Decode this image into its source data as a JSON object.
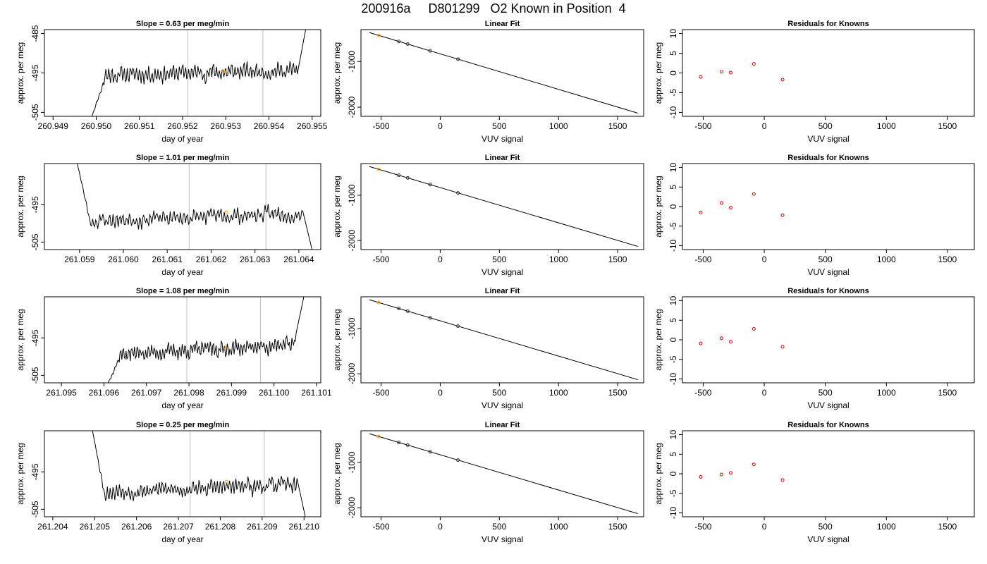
{
  "figure_title": "200916a     D801299   O2 Known in Position  4",
  "colors": {
    "trace": "#000000",
    "ref_line": "#bebebe",
    "highlight": "#ffa500",
    "residual_point": "#cd0000",
    "fit_point": "#333333",
    "axis": "#000000"
  },
  "chart_data": [
    {
      "type": "line",
      "row": 0,
      "column": "trace",
      "title": "Slope =  0.63  per meg/min",
      "xlabel": "day of year",
      "ylabel": "approx. per meg",
      "xlim": [
        260.9488,
        260.9552
      ],
      "ylim": [
        -506,
        -484
      ],
      "xticks": [
        "260.949",
        "260.950",
        "260.951",
        "260.952",
        "260.953",
        "260.954",
        "260.955"
      ],
      "xtick_values": [
        260.949,
        260.95,
        260.951,
        260.952,
        260.953,
        260.954,
        260.955
      ],
      "yticks": [
        "-505",
        "-495",
        "-485"
      ],
      "ytick_values": [
        -505,
        -495,
        -485
      ],
      "ref_lines_x": [
        260.95212,
        260.95386
      ],
      "highlight_point": [
        260.95295,
        -494.6
      ],
      "trace": {
        "start": 260.9499,
        "end": 260.95485,
        "head": [
          -506,
          -496.5
        ],
        "level": -495.6,
        "rise": 1.3,
        "tail": [
          -495.5,
          -484
        ],
        "seed": 11
      }
    },
    {
      "type": "line",
      "row": 0,
      "column": "fit",
      "title": "Linear Fit",
      "xlabel": "VUV signal",
      "ylabel": "approx. per meg",
      "xlim": [
        -670,
        1720
      ],
      "ylim": [
        -2200,
        -300
      ],
      "xticks": [
        "-500",
        "0",
        "500",
        "1000",
        "1500"
      ],
      "xtick_values": [
        -500,
        0,
        500,
        1000,
        1500
      ],
      "yticks": [
        "-1000",
        "-2000"
      ],
      "ytick_values": [
        -1000,
        -2000
      ],
      "line": [
        [
          -600,
          -364
        ],
        [
          1670,
          -2130
        ]
      ],
      "points": [
        [
          -520,
          -427
        ],
        [
          -350,
          -559
        ],
        [
          -275,
          -617
        ],
        [
          -85,
          -765
        ],
        [
          150,
          -948
        ]
      ],
      "highlight_index": 0
    },
    {
      "type": "scatter",
      "row": 0,
      "column": "residuals",
      "title": "Residuals for Knowns",
      "xlabel": "VUV signal",
      "ylabel": "approx. per meg",
      "xlim": [
        -670,
        1720
      ],
      "ylim": [
        -11,
        11
      ],
      "xticks": [
        "-500",
        "0",
        "500",
        "1000",
        "1500"
      ],
      "xtick_values": [
        -500,
        0,
        500,
        1000,
        1500
      ],
      "yticks": [
        "-10",
        "-5",
        "0",
        "5",
        "10"
      ],
      "ytick_values": [
        -10,
        -5,
        0,
        5,
        10
      ],
      "points": [
        [
          -520,
          -1.0
        ],
        [
          -350,
          0.3
        ],
        [
          -275,
          0.1
        ],
        [
          -85,
          2.3
        ],
        [
          150,
          -1.7
        ]
      ]
    },
    {
      "type": "line",
      "row": 1,
      "column": "trace",
      "title": "Slope =  1.01  per meg/min",
      "xlabel": "day of year",
      "ylabel": "approx. per meg",
      "xlim": [
        261.0582,
        261.0645
      ],
      "ylim": [
        -507,
        -484
      ],
      "xticks": [
        "261.059",
        "261.060",
        "261.061",
        "261.062",
        "261.063",
        "261.064"
      ],
      "xtick_values": [
        261.059,
        261.06,
        261.061,
        261.062,
        261.063,
        261.064
      ],
      "yticks": [
        "-505",
        "-495"
      ],
      "ytick_values": [
        -505,
        -495
      ],
      "ref_lines_x": [
        261.0615,
        261.06325
      ],
      "highlight_point": [
        261.06235,
        -497.0
      ],
      "trace": {
        "start": 261.05895,
        "end": 261.0643,
        "head": [
          -484,
          -501
        ],
        "level": -499.5,
        "rise": 2.3,
        "tail": [
          -496.5,
          -507
        ],
        "seed": 23
      }
    },
    {
      "type": "line",
      "row": 1,
      "column": "fit",
      "title": "Linear Fit",
      "xlabel": "VUV signal",
      "ylabel": "approx. per meg",
      "xlim": [
        -670,
        1720
      ],
      "ylim": [
        -2200,
        -300
      ],
      "xticks": [
        "-500",
        "0",
        "500",
        "1000",
        "1500"
      ],
      "xtick_values": [
        -500,
        0,
        500,
        1000,
        1500
      ],
      "yticks": [
        "-1000",
        "-2000"
      ],
      "ytick_values": [
        -1000,
        -2000
      ],
      "line": [
        [
          -600,
          -364
        ],
        [
          1670,
          -2130
        ]
      ],
      "points": [
        [
          -520,
          -427
        ],
        [
          -350,
          -559
        ],
        [
          -275,
          -617
        ],
        [
          -85,
          -765
        ],
        [
          150,
          -948
        ]
      ],
      "highlight_index": 0
    },
    {
      "type": "scatter",
      "row": 1,
      "column": "residuals",
      "title": "Residuals for Knowns",
      "xlabel": "VUV signal",
      "ylabel": "approx. per meg",
      "xlim": [
        -670,
        1720
      ],
      "ylim": [
        -11,
        11
      ],
      "xticks": [
        "-500",
        "0",
        "500",
        "1000",
        "1500"
      ],
      "xtick_values": [
        -500,
        0,
        500,
        1000,
        1500
      ],
      "yticks": [
        "-10",
        "-5",
        "0",
        "5",
        "10"
      ],
      "ytick_values": [
        -10,
        -5,
        0,
        5,
        10
      ],
      "points": [
        [
          -520,
          -1.5
        ],
        [
          -350,
          0.9
        ],
        [
          -275,
          -0.3
        ],
        [
          -85,
          3.2
        ],
        [
          150,
          -2.2
        ]
      ]
    },
    {
      "type": "line",
      "row": 2,
      "column": "trace",
      "title": "Slope =  1.08  per meg/min",
      "xlabel": "day of year",
      "ylabel": "approx. per meg",
      "xlim": [
        261.0946,
        261.1011
      ],
      "ylim": [
        -507,
        -484
      ],
      "xticks": [
        "261.095",
        "261.096",
        "261.097",
        "261.098",
        "261.099",
        "261.100",
        "261.101"
      ],
      "xtick_values": [
        261.095,
        261.096,
        261.097,
        261.098,
        261.099,
        261.1,
        261.101
      ],
      "yticks": [
        "-505",
        "-495"
      ],
      "ytick_values": [
        -505,
        -495
      ],
      "ref_lines_x": [
        261.09795,
        261.09968
      ],
      "highlight_point": [
        261.09885,
        -497.5
      ],
      "trace": {
        "start": 261.0961,
        "end": 261.1007,
        "head": [
          -507,
          -500
        ],
        "level": -499.5,
        "rise": 2.8,
        "tail": [
          -494,
          -484
        ],
        "seed": 37
      }
    },
    {
      "type": "line",
      "row": 2,
      "column": "fit",
      "title": "Linear Fit",
      "xlabel": "VUV signal",
      "ylabel": "approx. per meg",
      "xlim": [
        -670,
        1720
      ],
      "ylim": [
        -2200,
        -300
      ],
      "xticks": [
        "-500",
        "0",
        "500",
        "1000",
        "1500"
      ],
      "xtick_values": [
        -500,
        0,
        500,
        1000,
        1500
      ],
      "yticks": [
        "-1000",
        "-2000"
      ],
      "ytick_values": [
        -1000,
        -2000
      ],
      "line": [
        [
          -600,
          -364
        ],
        [
          1670,
          -2130
        ]
      ],
      "points": [
        [
          -520,
          -427
        ],
        [
          -350,
          -559
        ],
        [
          -275,
          -617
        ],
        [
          -85,
          -765
        ],
        [
          150,
          -948
        ]
      ],
      "highlight_index": 0
    },
    {
      "type": "scatter",
      "row": 2,
      "column": "residuals",
      "title": "Residuals for Knowns",
      "xlabel": "VUV signal",
      "ylabel": "approx. per meg",
      "xlim": [
        -670,
        1720
      ],
      "ylim": [
        -11,
        11
      ],
      "xticks": [
        "-500",
        "0",
        "500",
        "1000",
        "1500"
      ],
      "xtick_values": [
        -500,
        0,
        500,
        1000,
        1500
      ],
      "yticks": [
        "-10",
        "-5",
        "0",
        "5",
        "10"
      ],
      "ytick_values": [
        -10,
        -5,
        0,
        5,
        10
      ],
      "points": [
        [
          -520,
          -0.9
        ],
        [
          -350,
          0.4
        ],
        [
          -275,
          -0.5
        ],
        [
          -85,
          2.8
        ],
        [
          150,
          -1.8
        ]
      ]
    },
    {
      "type": "line",
      "row": 3,
      "column": "trace",
      "title": "Slope =  0.25  per meg/min",
      "xlabel": "day of year",
      "ylabel": "approx. per meg",
      "xlim": [
        261.2038,
        261.2104
      ],
      "ylim": [
        -507,
        -484
      ],
      "xticks": [
        "261.204",
        "261.205",
        "261.206",
        "261.207",
        "261.208",
        "261.209",
        "261.210"
      ],
      "xtick_values": [
        261.204,
        261.205,
        261.206,
        261.207,
        261.208,
        261.209,
        261.21
      ],
      "yticks": [
        "-505",
        "-495"
      ],
      "ytick_values": [
        -505,
        -495
      ],
      "ref_lines_x": [
        261.20728,
        261.20905
      ],
      "highlight_point": [
        261.20815,
        -497.6
      ],
      "trace": {
        "start": 261.20495,
        "end": 261.21003,
        "head": [
          -484,
          -502
        ],
        "level": -500.5,
        "rise": 2.2,
        "tail": [
          -496.5,
          -507
        ],
        "seed": 53
      }
    },
    {
      "type": "line",
      "row": 3,
      "column": "fit",
      "title": "Linear Fit",
      "xlabel": "VUV signal",
      "ylabel": "approx. per meg",
      "xlim": [
        -670,
        1720
      ],
      "ylim": [
        -2200,
        -300
      ],
      "xticks": [
        "-500",
        "0",
        "500",
        "1000",
        "1500"
      ],
      "xtick_values": [
        -500,
        0,
        500,
        1000,
        1500
      ],
      "yticks": [
        "-1000",
        "-2000"
      ],
      "ytick_values": [
        -1000,
        -2000
      ],
      "line": [
        [
          -600,
          -364
        ],
        [
          1670,
          -2130
        ]
      ],
      "points": [
        [
          -520,
          -427
        ],
        [
          -350,
          -559
        ],
        [
          -275,
          -617
        ],
        [
          -85,
          -765
        ],
        [
          150,
          -948
        ]
      ],
      "highlight_index": 0
    },
    {
      "type": "scatter",
      "row": 3,
      "column": "residuals",
      "title": "Residuals for Knowns",
      "xlabel": "VUV signal",
      "ylabel": "approx. per meg",
      "xlim": [
        -670,
        1720
      ],
      "ylim": [
        -11,
        11
      ],
      "xticks": [
        "-500",
        "0",
        "500",
        "1000",
        "1500"
      ],
      "xtick_values": [
        -500,
        0,
        500,
        1000,
        1500
      ],
      "yticks": [
        "-10",
        "-5",
        "0",
        "5",
        "10"
      ],
      "ytick_values": [
        -10,
        -5,
        0,
        5,
        10
      ],
      "points": [
        [
          -520,
          -0.8
        ],
        [
          -350,
          -0.2
        ],
        [
          -275,
          0.2
        ],
        [
          -85,
          2.4
        ],
        [
          150,
          -1.6
        ]
      ]
    }
  ]
}
